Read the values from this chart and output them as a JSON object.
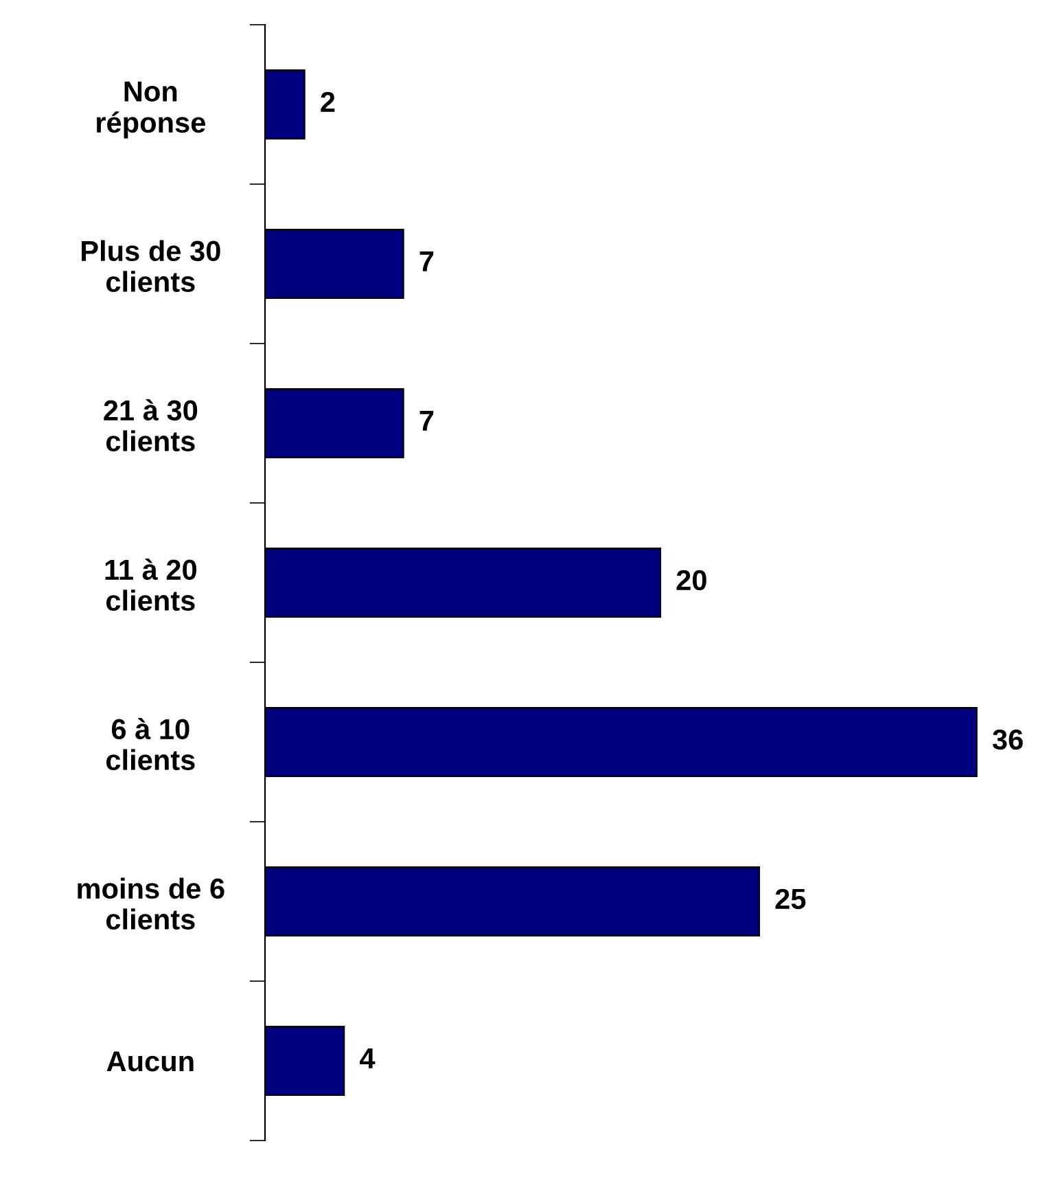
{
  "chart_data": {
    "type": "bar",
    "orientation": "horizontal",
    "categories": [
      "Non\nréponse",
      "Plus de 30\nclients",
      "21 à 30\nclients",
      "11 à 20\nclients",
      "6 à 10\nclients",
      "moins de 6\nclients",
      "Aucun"
    ],
    "values": [
      2,
      7,
      7,
      20,
      36,
      25,
      4
    ],
    "color": "#000080",
    "data_labels": true
  }
}
